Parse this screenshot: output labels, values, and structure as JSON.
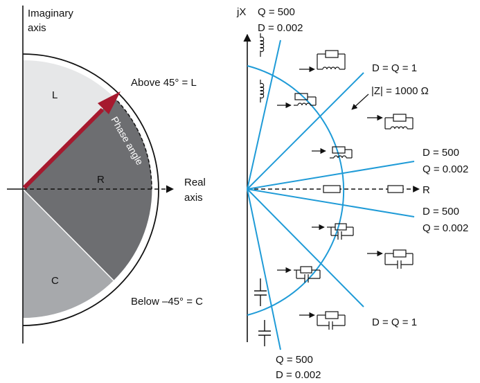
{
  "colors": {
    "region_L": "#e6e7e8",
    "region_R": "#6d6e71",
    "region_C": "#a7a9ac",
    "arrow": "#a6192e",
    "lines": "#1f9bd7",
    "ink": "#111111"
  },
  "left": {
    "imag_axis_line1": "Imaginary",
    "imag_axis_line2": "axis",
    "real_axis_line1": "Real",
    "real_axis_line2": "axis",
    "label_L": "L",
    "label_R": "R",
    "label_C": "C",
    "above": "Above 45° = L",
    "below": "Below –45° = C",
    "phase": "Phase angle"
  },
  "right": {
    "jx": "jX",
    "r": "R",
    "magnitude": "|Z| = 1000 Ω",
    "q500_top_q": "Q = 500",
    "q500_top_d": "D = 0.002",
    "dq1_top": "D = Q = 1",
    "d500_up_d": "D = 500",
    "d500_up_q": "Q = 0.002",
    "d500_dn_d": "D = 500",
    "d500_dn_q": "Q = 0.002",
    "dq1_bottom": "D = Q = 1",
    "q500_bot_q": "Q = 500",
    "q500_bot_d": "D = 0.002"
  }
}
